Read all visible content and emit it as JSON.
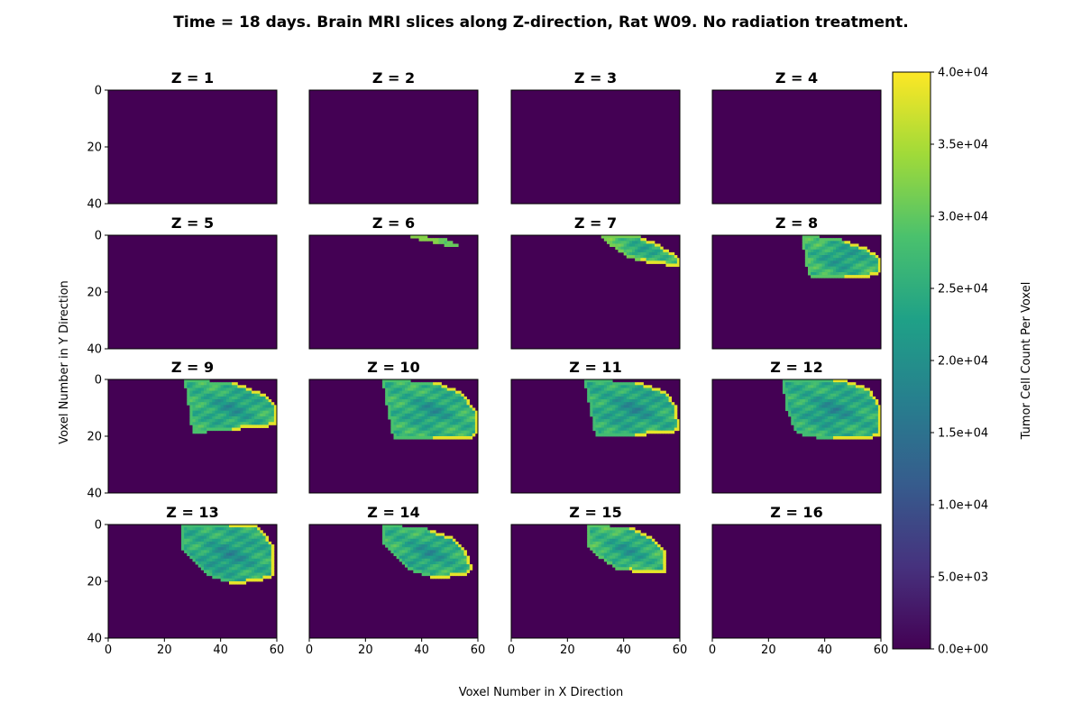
{
  "chart_data": {
    "type": "heatmap",
    "title": "Time = 18 days. Brain MRI slices along Z-direction, Rat W09. No radiation treatment.",
    "xlabel": "Voxel Number in X Direction",
    "ylabel": "Voxel Number in Y Direction",
    "x_ticks": [
      "0",
      "20",
      "40",
      "60"
    ],
    "y_ticks": [
      "0",
      "20",
      "40"
    ],
    "xlim": [
      0,
      60
    ],
    "ylim": [
      40,
      0
    ],
    "colorbar": {
      "label": "Tumor Cell Count Per Voxel",
      "min": 0,
      "max": 40000,
      "ticks": [
        "0.0e+00",
        "5.0e+03",
        "1.0e+04",
        "1.5e+04",
        "2.0e+04",
        "2.5e+04",
        "3.0e+04",
        "3.5e+04",
        "4.0e+04"
      ],
      "colormap": [
        "#440154",
        "#46327e",
        "#365c8d",
        "#277f8e",
        "#1fa187",
        "#4ac16d",
        "#a0da39",
        "#fde725"
      ]
    },
    "background_color": "#440154",
    "panels": [
      {
        "title": "Z = 1",
        "tumor": null
      },
      {
        "title": "Z = 2",
        "tumor": null
      },
      {
        "title": "Z = 3",
        "tumor": null
      },
      {
        "title": "Z = 4",
        "tumor": null
      },
      {
        "title": "Z = 5",
        "tumor": null
      },
      {
        "title": "Z = 6",
        "tumor": {
          "outline": [
            [
              36,
              0
            ],
            [
              48,
              1
            ],
            [
              54,
              4
            ],
            [
              50,
              4
            ],
            [
              42,
              2
            ],
            [
              37,
              1
            ]
          ],
          "peak": 32000,
          "mean": 30000
        }
      },
      {
        "title": "Z = 7",
        "tumor": {
          "outline": [
            [
              31,
              0
            ],
            [
              45,
              0
            ],
            [
              52,
              3
            ],
            [
              57,
              6
            ],
            [
              60,
              8
            ],
            [
              60,
              11
            ],
            [
              50,
              10
            ],
            [
              42,
              8
            ],
            [
              36,
              4
            ]
          ],
          "peak": 40000,
          "mean": 29000
        }
      },
      {
        "title": "Z = 8",
        "tumor": {
          "outline": [
            [
              32,
              0
            ],
            [
              45,
              1
            ],
            [
              54,
              4
            ],
            [
              60,
              8
            ],
            [
              60,
              13
            ],
            [
              55,
              15
            ],
            [
              35,
              15
            ],
            [
              33,
              10
            ]
          ],
          "peak": 40000,
          "mean": 27000
        }
      },
      {
        "title": "Z = 9",
        "tumor": {
          "outline": [
            [
              27,
              0
            ],
            [
              45,
              1
            ],
            [
              55,
              5
            ],
            [
              60,
              9
            ],
            [
              60,
              16
            ],
            [
              54,
              17
            ],
            [
              40,
              18
            ],
            [
              30,
              19
            ],
            [
              29,
              12
            ]
          ],
          "peak": 40000,
          "mean": 26000
        }
      },
      {
        "title": "Z = 10",
        "tumor": {
          "outline": [
            [
              26,
              0
            ],
            [
              46,
              1
            ],
            [
              55,
              5
            ],
            [
              60,
              12
            ],
            [
              60,
              19
            ],
            [
              57,
              21
            ],
            [
              40,
              21
            ],
            [
              30,
              21
            ],
            [
              28,
              12
            ]
          ],
          "peak": 40000,
          "mean": 26000
        }
      },
      {
        "title": "Z = 11",
        "tumor": {
          "outline": [
            [
              26,
              0
            ],
            [
              46,
              1
            ],
            [
              55,
              4
            ],
            [
              59,
              10
            ],
            [
              60,
              18
            ],
            [
              57,
              19
            ],
            [
              40,
              20
            ],
            [
              30,
              20
            ],
            [
              28,
              10
            ]
          ],
          "peak": 40000,
          "mean": 25000
        }
      },
      {
        "title": "Z = 12",
        "tumor": {
          "outline": [
            [
              25,
              0
            ],
            [
              46,
              0
            ],
            [
              56,
              3
            ],
            [
              60,
              10
            ],
            [
              60,
              20
            ],
            [
              55,
              21
            ],
            [
              40,
              21
            ],
            [
              30,
              19
            ],
            [
              26,
              10
            ]
          ],
          "peak": 40000,
          "mean": 25000
        }
      },
      {
        "title": "Z = 13",
        "tumor": {
          "outline": [
            [
              26,
              0
            ],
            [
              52,
              0
            ],
            [
              56,
              3
            ],
            [
              59,
              8
            ],
            [
              59,
              18
            ],
            [
              54,
              20
            ],
            [
              44,
              21
            ],
            [
              36,
              18
            ],
            [
              30,
              12
            ],
            [
              26,
              8
            ]
          ],
          "peak": 40000,
          "mean": 25000
        }
      },
      {
        "title": "Z = 14",
        "tumor": {
          "outline": [
            [
              26,
              0
            ],
            [
              40,
              1
            ],
            [
              50,
              4
            ],
            [
              56,
              9
            ],
            [
              58,
              16
            ],
            [
              56,
              18
            ],
            [
              45,
              19
            ],
            [
              36,
              16
            ],
            [
              30,
              11
            ],
            [
              26,
              6
            ]
          ],
          "peak": 40000,
          "mean": 26000
        }
      },
      {
        "title": "Z = 15",
        "tumor": {
          "outline": [
            [
              27,
              0
            ],
            [
              43,
              1
            ],
            [
              51,
              5
            ],
            [
              55,
              10
            ],
            [
              55,
              17
            ],
            [
              48,
              17
            ],
            [
              38,
              16
            ],
            [
              32,
              12
            ],
            [
              27,
              8
            ]
          ],
          "peak": 40000,
          "mean": 27000
        }
      },
      {
        "title": "Z = 16",
        "tumor": null
      }
    ]
  }
}
